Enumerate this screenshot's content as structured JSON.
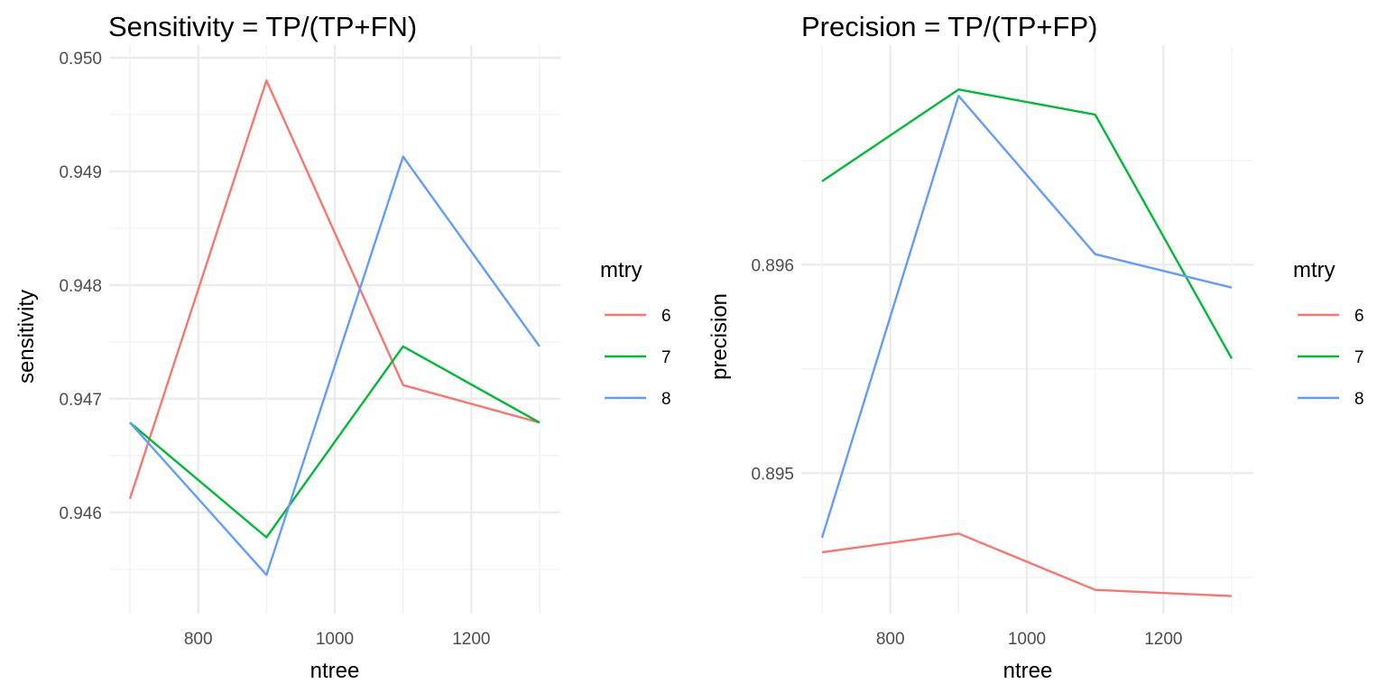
{
  "chart_data": [
    {
      "type": "line",
      "title": "Sensitivity = TP/(TP+FN)",
      "xlabel": "ntree",
      "ylabel": "sensitivity",
      "x": [
        700,
        900,
        1100,
        1300
      ],
      "xlim": [
        700,
        1300
      ],
      "ylim": [
        0.9453,
        0.95
      ],
      "x_ticks": [
        "800",
        "1000",
        "1200"
      ],
      "y_ticks": [
        "0.946",
        "0.947",
        "0.948",
        "0.949",
        "0.950"
      ],
      "grid": true,
      "legend": {
        "title": "mtry",
        "position": "right"
      },
      "series": [
        {
          "name": "6",
          "color": "#F8766D",
          "values": [
            0.94612,
            0.9498,
            0.94712,
            0.94679
          ]
        },
        {
          "name": "7",
          "color": "#00BA38",
          "values": [
            0.94679,
            0.94578,
            0.94746,
            0.94679
          ]
        },
        {
          "name": "8",
          "color": "#619CFF",
          "values": [
            0.94679,
            0.94545,
            0.94913,
            0.94746
          ]
        }
      ]
    },
    {
      "type": "line",
      "title": "Precision = TP/(TP+FP)",
      "xlabel": "ntree",
      "ylabel": "precision",
      "x": [
        700,
        900,
        1100,
        1300
      ],
      "xlim": [
        700,
        1300
      ],
      "ylim": [
        0.89443,
        0.89688
      ],
      "x_ticks": [
        "800",
        "1000",
        "1200"
      ],
      "y_ticks": [
        "0.895",
        "0.896"
      ],
      "grid": true,
      "legend": {
        "title": "mtry",
        "position": "right"
      },
      "series": [
        {
          "name": "6",
          "color": "#F8766D",
          "values": [
            0.89462,
            0.89471,
            0.89444,
            0.89441
          ]
        },
        {
          "name": "7",
          "color": "#00BA38",
          "values": [
            0.8964,
            0.89684,
            0.89672,
            0.89555
          ]
        },
        {
          "name": "8",
          "color": "#619CFF",
          "values": [
            0.89469,
            0.89681,
            0.89605,
            0.89589
          ]
        }
      ]
    }
  ]
}
